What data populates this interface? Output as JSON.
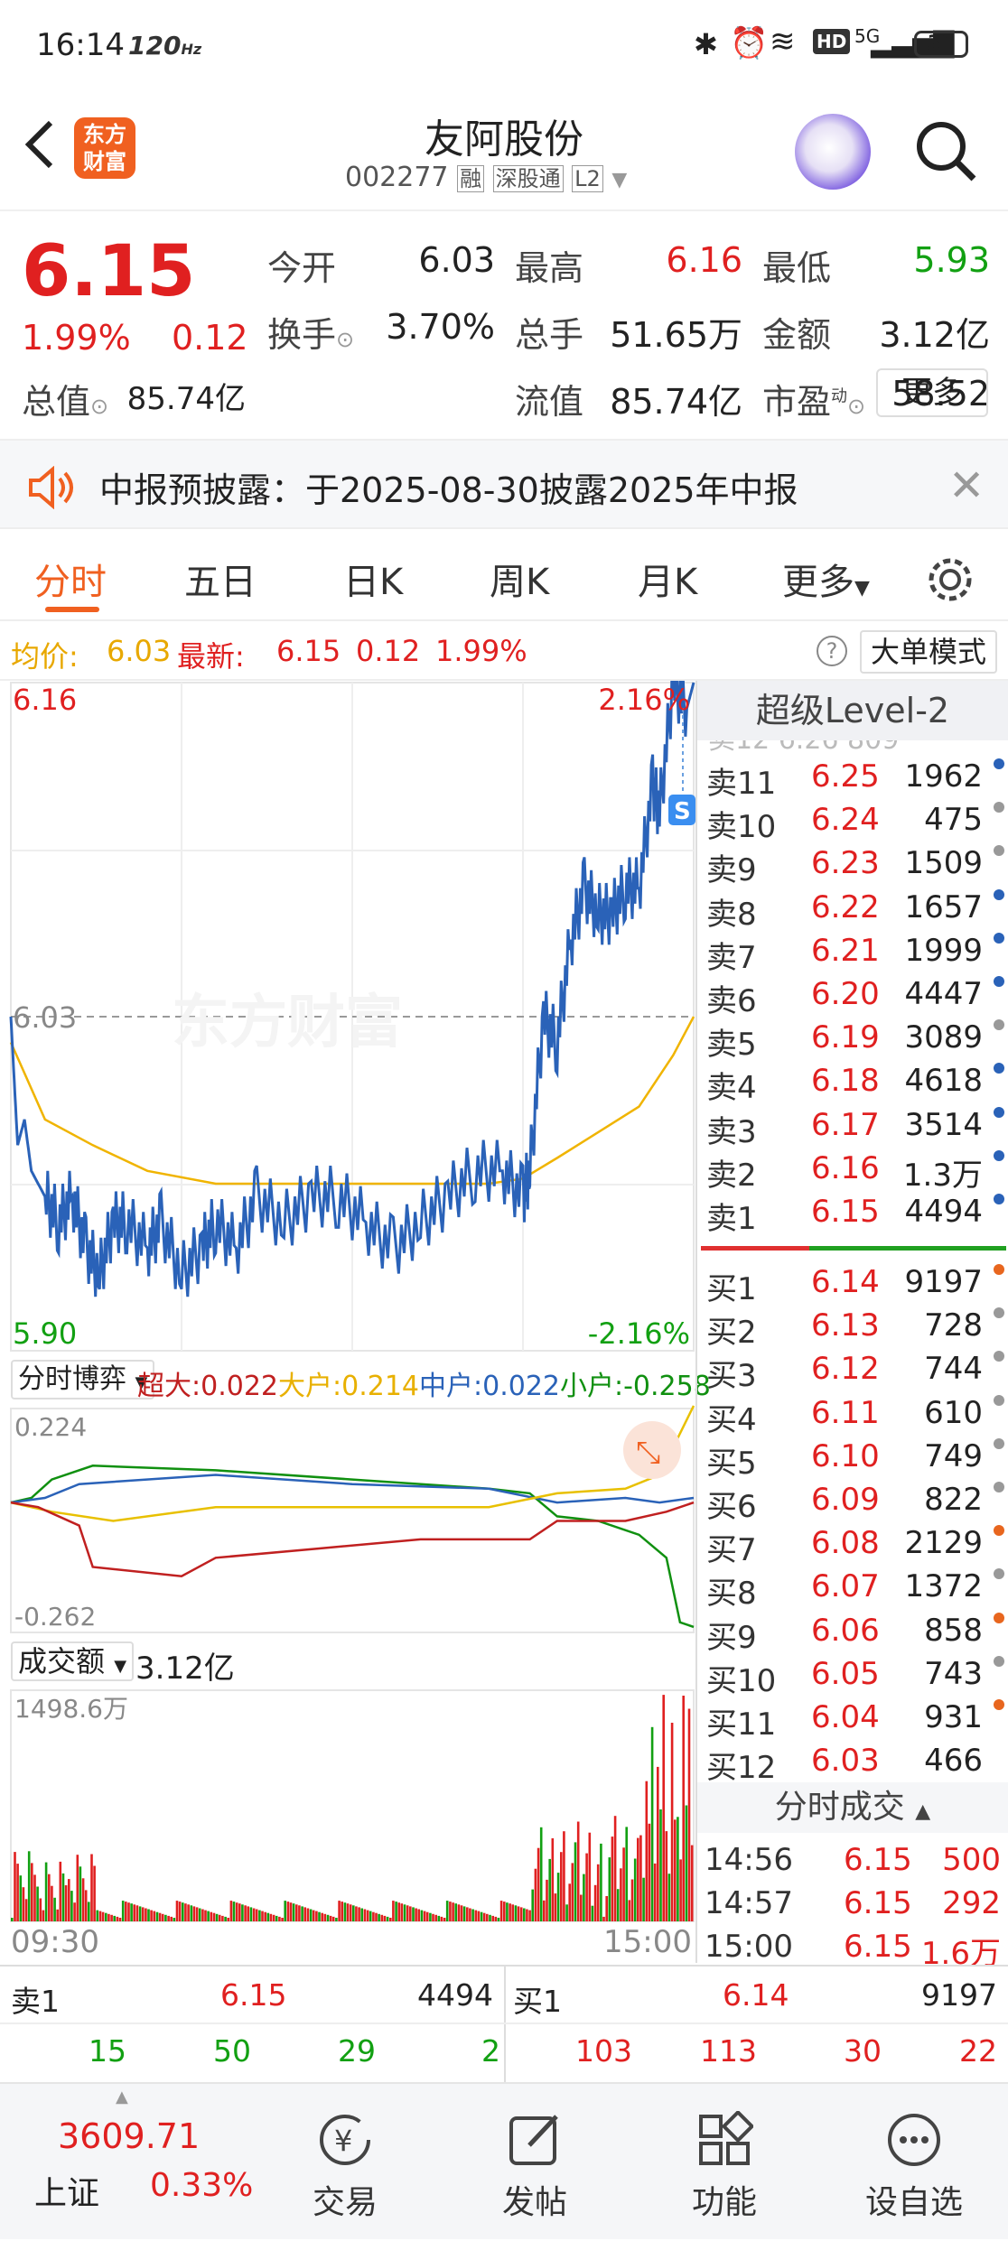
{
  "status": {
    "time": "16:14",
    "hz": "120",
    "hz_unit": "Hz",
    "network": "5G",
    "battery": "31"
  },
  "header": {
    "back": "返回",
    "logo_line1": "东方",
    "logo_line2": "财富",
    "name": "友阿股份",
    "code": "002277",
    "tag1": "融",
    "tag2": "深股通",
    "tag3": "L2"
  },
  "quote": {
    "price": "6.15",
    "pct": "1.99%",
    "chg": "0.12",
    "f": [
      {
        "k": "今开",
        "v": "6.03"
      },
      {
        "k": "最高",
        "v": "6.16"
      },
      {
        "k": "最低",
        "v": "5.93"
      },
      {
        "k": "换手",
        "v": "3.70%"
      },
      {
        "k": "总手",
        "v": "51.65万"
      },
      {
        "k": "金额",
        "v": "3.12亿"
      },
      {
        "k": "总值",
        "v": "85.74亿"
      },
      {
        "k": "流值",
        "v": "85.74亿"
      },
      {
        "k": "市盈",
        "sup": "动",
        "v": "58.52"
      }
    ],
    "more": "更多"
  },
  "notice": {
    "text": "中报预披露：于2025-08-30披露2025年中报"
  },
  "tabs": [
    "分时",
    "五日",
    "日K",
    "周K",
    "月K",
    "更多"
  ],
  "avg": {
    "label": "均价:",
    "value": "6.03",
    "latest_label": "最新:",
    "latest": "6.15",
    "chg": "0.12",
    "pct": "1.99%",
    "mode": "大单模式"
  },
  "intraday": {
    "top": "6.16",
    "bottom": "5.90",
    "top_pct": "2.16%",
    "bottom_pct": "-2.16%",
    "mid": "6.03",
    "watermark": "东方财富",
    "marker": "S",
    "start": "09:30",
    "end": "15:00"
  },
  "flow": {
    "selector": "分时博弈",
    "s1": "超大:0.022",
    "s2": "大户:0.214",
    "s3": "中户:0.022",
    "s4": "小户:-0.258",
    "top": "0.224",
    "bottom": "-0.262"
  },
  "volume": {
    "selector": "成交额",
    "total": "3.12亿",
    "max": "1498.6万"
  },
  "book": {
    "title": "超级Level-2",
    "asks": [
      [
        "卖11",
        "6.25",
        "1962",
        "#2a62b8"
      ],
      [
        "卖10",
        "6.24",
        "475",
        "#999"
      ],
      [
        "卖9",
        "6.23",
        "1509",
        "#999"
      ],
      [
        "卖8",
        "6.22",
        "1657",
        "#2a62b8"
      ],
      [
        "卖7",
        "6.21",
        "1999",
        "#2a62b8"
      ],
      [
        "卖6",
        "6.20",
        "4447",
        "#2a62b8"
      ],
      [
        "卖5",
        "6.19",
        "3089",
        "#999"
      ],
      [
        "卖4",
        "6.18",
        "4618",
        "#2a62b8"
      ],
      [
        "卖3",
        "6.17",
        "3514",
        "#2a62b8"
      ],
      [
        "卖2",
        "6.16",
        "1.3万",
        "#2a62b8"
      ],
      [
        "卖1",
        "6.15",
        "4494",
        "#2a62b8"
      ]
    ],
    "bids": [
      [
        "买1",
        "6.14",
        "9197",
        "#e8661e"
      ],
      [
        "买2",
        "6.13",
        "728",
        "#999"
      ],
      [
        "买3",
        "6.12",
        "744",
        "#999"
      ],
      [
        "买4",
        "6.11",
        "610",
        "#999"
      ],
      [
        "买5",
        "6.10",
        "749",
        "#999"
      ],
      [
        "买6",
        "6.09",
        "822",
        "#999"
      ],
      [
        "买7",
        "6.08",
        "2129",
        "#e8661e"
      ],
      [
        "买8",
        "6.07",
        "1372",
        "#999"
      ],
      [
        "买9",
        "6.06",
        "858",
        "#e8661e"
      ],
      [
        "买10",
        "6.05",
        "743",
        "#999"
      ],
      [
        "买11",
        "6.04",
        "931",
        "#e8661e"
      ],
      [
        "买12",
        "6.03",
        "466",
        ""
      ]
    ],
    "trades_title": "分时成交",
    "trades": [
      [
        "14:56",
        "6.15",
        "500"
      ],
      [
        "14:57",
        "6.15",
        "292"
      ],
      [
        "15:00",
        "6.15",
        "1.6万"
      ]
    ]
  },
  "summary": {
    "ask_label": "卖1",
    "ask_price": "6.15",
    "ask_vol": "4494",
    "bid_label": "买1",
    "bid_price": "6.14",
    "bid_vol": "9197",
    "sell_counts": [
      "15",
      "50",
      "29",
      "2"
    ],
    "buy_counts": [
      "103",
      "113",
      "30",
      "22"
    ]
  },
  "bottom": {
    "index_value": "3609.71",
    "index_name": "上证",
    "index_pct": "0.33%",
    "nav": [
      "交易",
      "发帖",
      "功能",
      "设自选"
    ]
  }
}
